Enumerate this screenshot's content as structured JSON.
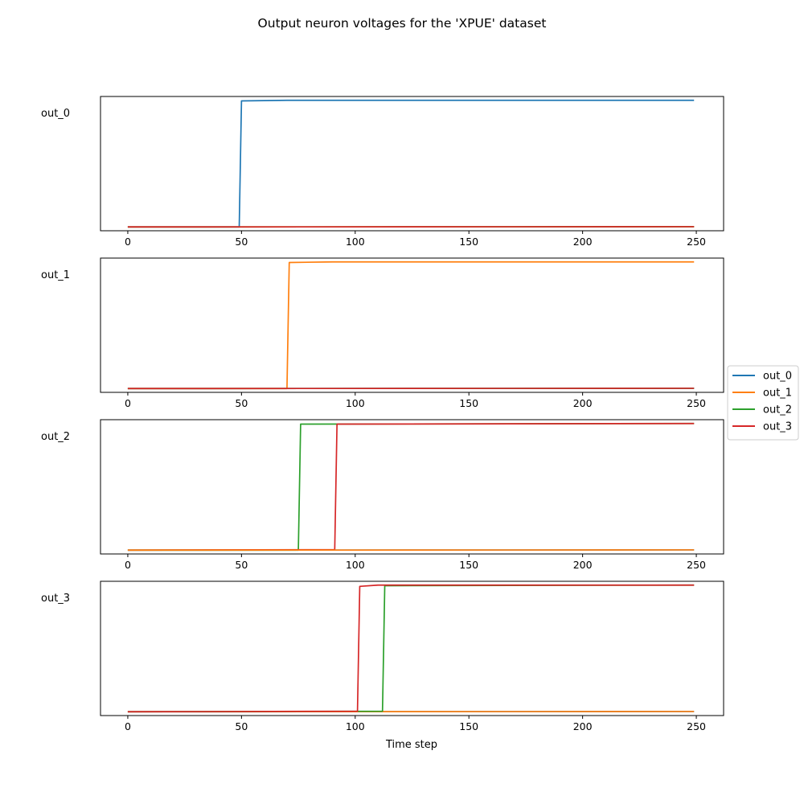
{
  "figure": {
    "title": "Output neuron voltages for the 'XPUE' dataset",
    "xlabel": "Time step"
  },
  "legend": {
    "placement": "right-center",
    "entries": [
      {
        "name": "out_0",
        "color": "#1f77b4"
      },
      {
        "name": "out_1",
        "color": "#ff7f0e"
      },
      {
        "name": "out_2",
        "color": "#2ca02c"
      },
      {
        "name": "out_3",
        "color": "#d62728"
      }
    ]
  },
  "chart_data": [
    {
      "type": "line",
      "row_label": "out_0",
      "xlim": [
        -12,
        262
      ],
      "ylim": [
        -0.03,
        1.03
      ],
      "x_ticks": [
        0,
        50,
        100,
        150,
        200,
        250
      ],
      "y_ticks_visible": false,
      "series": [
        {
          "name": "out_0",
          "color": "#1f77b4",
          "points": [
            [
              0,
              0
            ],
            [
              49,
              0
            ],
            [
              50,
              0.995
            ],
            [
              70,
              1.0
            ],
            [
              249,
              1.0
            ]
          ]
        },
        {
          "name": "out_1",
          "color": "#ff7f0e",
          "points": [
            [
              0,
              0
            ],
            [
              249,
              0.002
            ]
          ]
        },
        {
          "name": "out_2",
          "color": "#2ca02c",
          "points": [
            [
              0,
              0
            ],
            [
              249,
              0.002
            ]
          ]
        },
        {
          "name": "out_3",
          "color": "#d62728",
          "points": [
            [
              0,
              0
            ],
            [
              249,
              0.002
            ]
          ]
        }
      ]
    },
    {
      "type": "line",
      "row_label": "out_1",
      "xlim": [
        -12,
        262
      ],
      "ylim": [
        -0.03,
        1.03
      ],
      "x_ticks": [
        0,
        50,
        100,
        150,
        200,
        250
      ],
      "y_ticks_visible": false,
      "series": [
        {
          "name": "out_0",
          "color": "#1f77b4",
          "points": [
            [
              0,
              0
            ],
            [
              249,
              0.002
            ]
          ]
        },
        {
          "name": "out_1",
          "color": "#ff7f0e",
          "points": [
            [
              0,
              0
            ],
            [
              70,
              0
            ],
            [
              71,
              0.995
            ],
            [
              90,
              1.0
            ],
            [
              249,
              1.0
            ]
          ]
        },
        {
          "name": "out_2",
          "color": "#2ca02c",
          "points": [
            [
              0,
              0
            ],
            [
              249,
              0.002
            ]
          ]
        },
        {
          "name": "out_3",
          "color": "#d62728",
          "points": [
            [
              0,
              0
            ],
            [
              249,
              0.002
            ]
          ]
        }
      ]
    },
    {
      "type": "line",
      "row_label": "out_2",
      "xlim": [
        -12,
        262
      ],
      "ylim": [
        -0.03,
        1.03
      ],
      "x_ticks": [
        0,
        50,
        100,
        150,
        200,
        250
      ],
      "y_ticks_visible": false,
      "series": [
        {
          "name": "out_0",
          "color": "#1f77b4",
          "points": [
            [
              0,
              0
            ],
            [
              249,
              0.002
            ]
          ]
        },
        {
          "name": "out_2",
          "color": "#2ca02c",
          "points": [
            [
              0,
              0
            ],
            [
              75,
              0
            ],
            [
              76,
              0.995
            ],
            [
              249,
              1.0
            ]
          ]
        },
        {
          "name": "out_3",
          "color": "#d62728",
          "points": [
            [
              0,
              0
            ],
            [
              91,
              0.004
            ],
            [
              92,
              0.995
            ],
            [
              249,
              1.0
            ]
          ]
        },
        {
          "name": "out_1",
          "color": "#ff7f0e",
          "points": [
            [
              0,
              0
            ],
            [
              249,
              0.002
            ]
          ]
        }
      ]
    },
    {
      "type": "line",
      "row_label": "out_3",
      "xlim": [
        -12,
        262
      ],
      "ylim": [
        -0.03,
        1.03
      ],
      "x_ticks": [
        0,
        50,
        100,
        150,
        200,
        250
      ],
      "y_ticks_visible": false,
      "series": [
        {
          "name": "out_0",
          "color": "#1f77b4",
          "points": [
            [
              0,
              0
            ],
            [
              249,
              0.002
            ]
          ]
        },
        {
          "name": "out_1",
          "color": "#ff7f0e",
          "points": [
            [
              0,
              0
            ],
            [
              249,
              0.002
            ]
          ]
        },
        {
          "name": "out_2",
          "color": "#2ca02c",
          "points": [
            [
              0,
              0
            ],
            [
              112,
              0.004
            ],
            [
              113,
              0.995
            ],
            [
              249,
              1.0
            ]
          ]
        },
        {
          "name": "out_3",
          "color": "#d62728",
          "points": [
            [
              0,
              0
            ],
            [
              101,
              0.004
            ],
            [
              102,
              0.99
            ],
            [
              110,
              1.0
            ],
            [
              249,
              1.0
            ]
          ]
        }
      ]
    }
  ]
}
